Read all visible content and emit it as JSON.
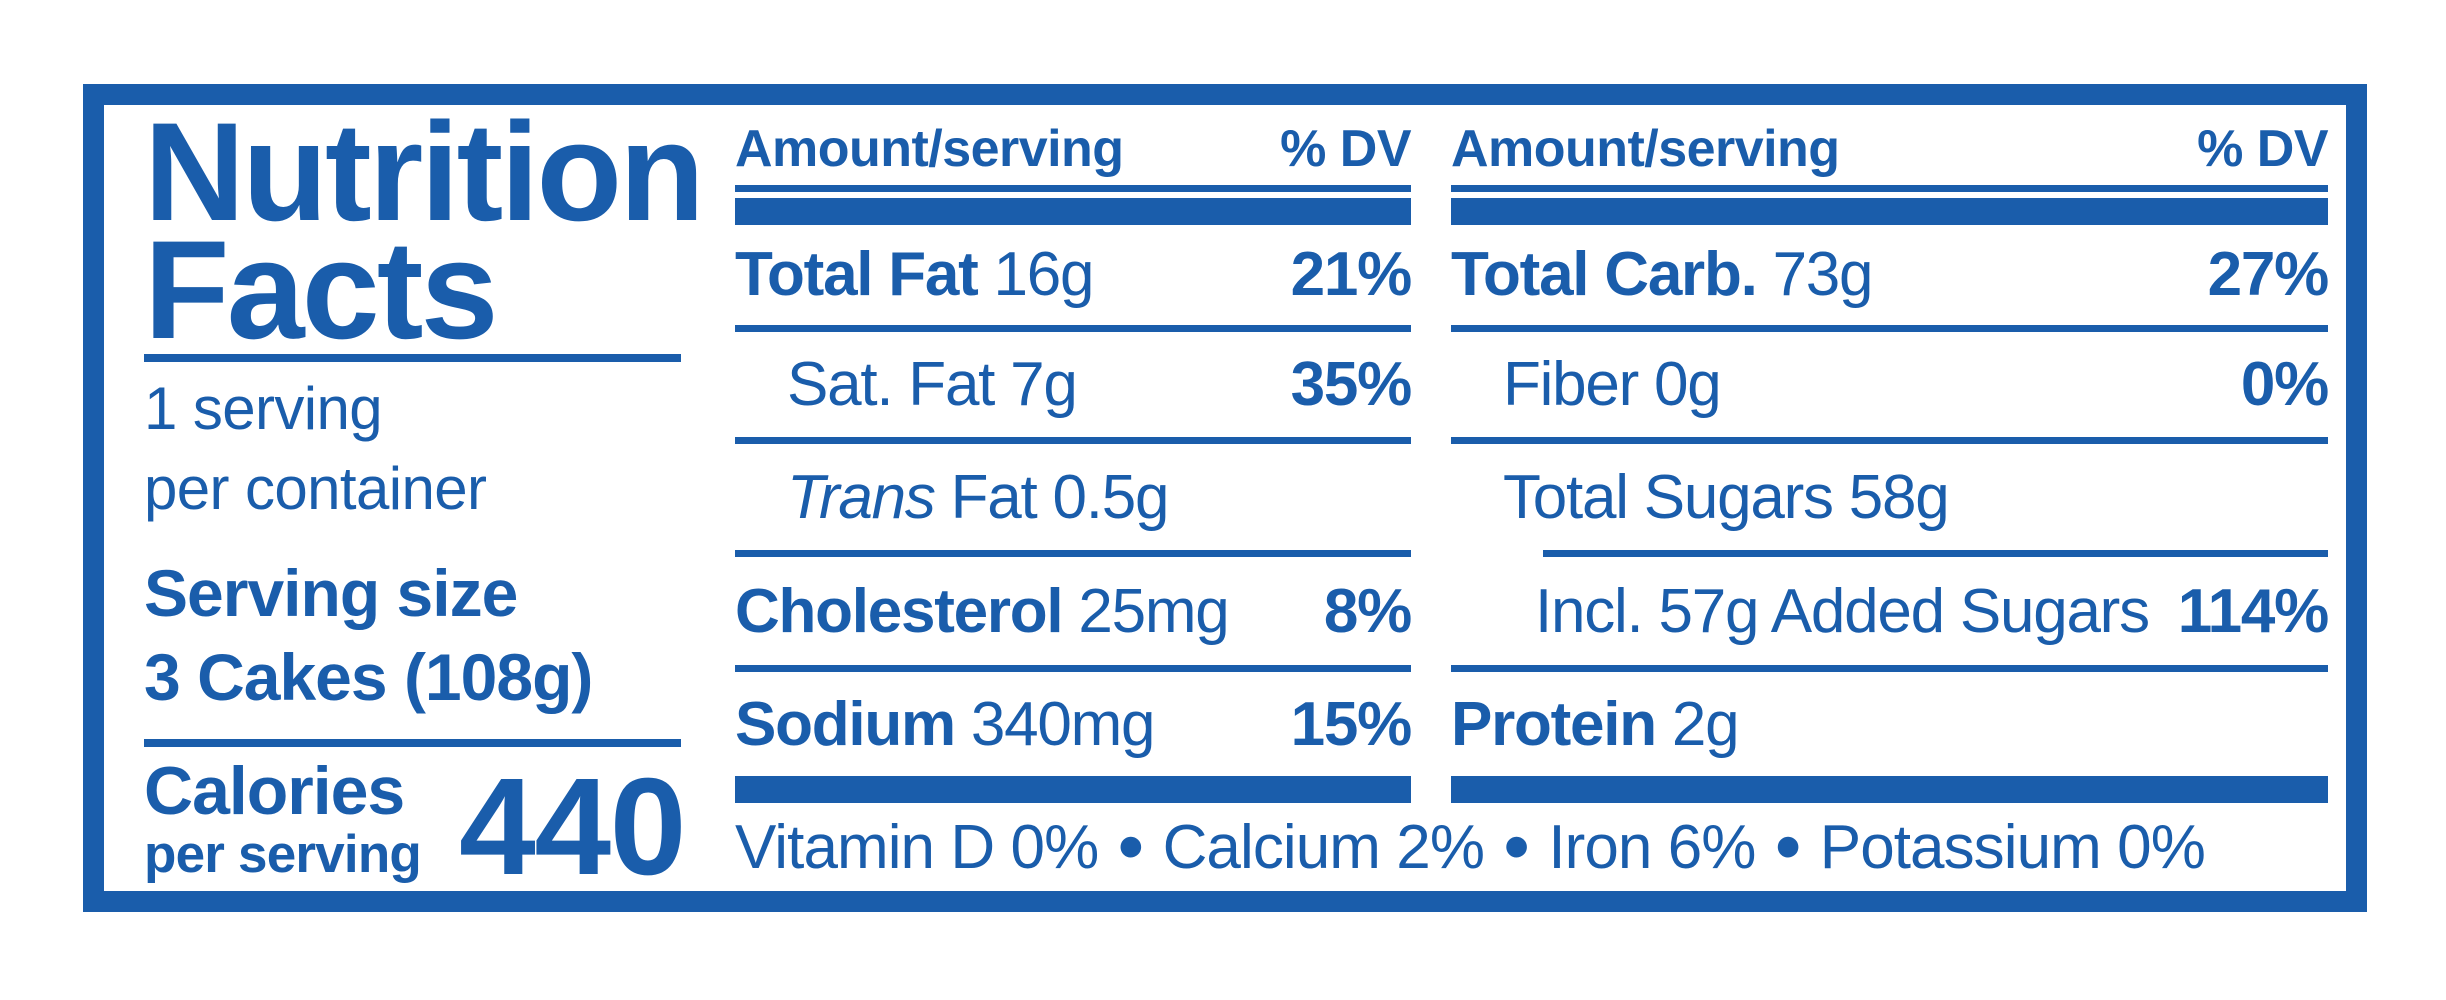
{
  "colors": {
    "brand_blue": "#1a5dab",
    "background": "#ffffff"
  },
  "label": {
    "title_line1": "Nutrition",
    "title_line2": "Facts",
    "servings_line1": "1 serving",
    "servings_line2": "per container",
    "serving_size_label": "Serving size",
    "serving_size_value": "3 Cakes (108g)",
    "calories_label": "Calories",
    "calories_sublabel": "per serving",
    "calories_value": "440",
    "column_header": {
      "amount": "Amount/serving",
      "dv": "% DV"
    },
    "columns": [
      {
        "rows": [
          {
            "indent": 0,
            "segments": [
              {
                "text": "Total Fat",
                "bold": true
              },
              {
                "text": " 16g"
              }
            ],
            "pct": "21%",
            "sep": "full"
          },
          {
            "indent": 1,
            "segments": [
              {
                "text": "Sat. Fat 7g"
              }
            ],
            "pct": "35%",
            "sep": "full"
          },
          {
            "indent": 1,
            "segments": [
              {
                "text": "Trans",
                "italic": true
              },
              {
                "text": " Fat 0.5g"
              }
            ],
            "pct": "",
            "sep": "full"
          },
          {
            "indent": 0,
            "segments": [
              {
                "text": "Cholesterol",
                "bold": true
              },
              {
                "text": " 25mg"
              }
            ],
            "pct": "8%",
            "sep": "full"
          },
          {
            "indent": 0,
            "segments": [
              {
                "text": "Sodium",
                "bold": true
              },
              {
                "text": " 340mg"
              }
            ],
            "pct": "15%",
            "sep": "none"
          }
        ]
      },
      {
        "rows": [
          {
            "indent": 0,
            "segments": [
              {
                "text": "Total Carb.",
                "bold": true
              },
              {
                "text": " 73g"
              }
            ],
            "pct": "27%",
            "sep": "full"
          },
          {
            "indent": 1,
            "segments": [
              {
                "text": "Fiber 0g"
              }
            ],
            "pct": "0%",
            "sep": "full"
          },
          {
            "indent": 1,
            "segments": [
              {
                "text": "Total Sugars 58g"
              }
            ],
            "pct": "",
            "sep": "indent"
          },
          {
            "indent": 2,
            "segments": [
              {
                "text": "Incl. 57g Added Sugars"
              }
            ],
            "pct": "114%",
            "sep": "full"
          },
          {
            "indent": 0,
            "segments": [
              {
                "text": "Protein",
                "bold": true
              },
              {
                "text": " 2g"
              }
            ],
            "pct": "",
            "sep": "none"
          }
        ]
      }
    ],
    "micronutrients": [
      "Vitamin D 0%",
      "Calcium 2%",
      "Iron 6%",
      "Potassium 0%"
    ]
  }
}
